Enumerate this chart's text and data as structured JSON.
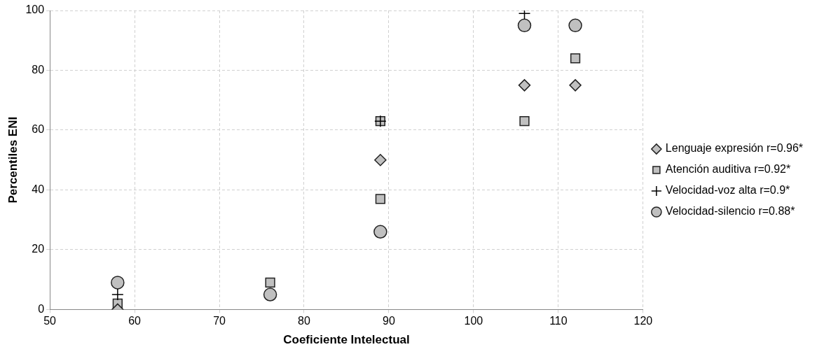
{
  "chart_data": {
    "type": "scatter",
    "xlabel": "Coeficiente Intelectual",
    "ylabel": "Percentiles ENI",
    "xlim": [
      50,
      120
    ],
    "xticks": [
      50,
      60,
      70,
      80,
      90,
      100,
      110,
      120
    ],
    "ylim": [
      0,
      100
    ],
    "yticks": [
      0,
      20,
      40,
      60,
      80,
      100
    ],
    "grid": true,
    "legend": "right",
    "series": [
      {
        "name": "Lenguaje expresión r=0.96*",
        "color": "#c0c0c0",
        "marker": "diamond",
        "x": [
          58,
          89,
          106,
          112
        ],
        "values": [
          0,
          50,
          75,
          75
        ]
      },
      {
        "name": "Atención auditiva r=0.92*",
        "color": "#c0c0c0",
        "marker": "square",
        "x": [
          58,
          76,
          89,
          89,
          106,
          112
        ],
        "values": [
          2,
          9,
          63,
          37,
          63,
          84
        ]
      },
      {
        "name": "Velocidad-voz alta r=0.9*",
        "color": "#000000",
        "marker": "cross",
        "x": [
          58,
          89,
          106
        ],
        "values": [
          5,
          63,
          99
        ]
      },
      {
        "name": "Velocidad-silencio r=0.88*",
        "color": "#c0c0c0",
        "marker": "circle",
        "x": [
          58,
          76,
          89,
          106,
          112
        ],
        "values": [
          9,
          5,
          26,
          95,
          95
        ]
      }
    ]
  }
}
